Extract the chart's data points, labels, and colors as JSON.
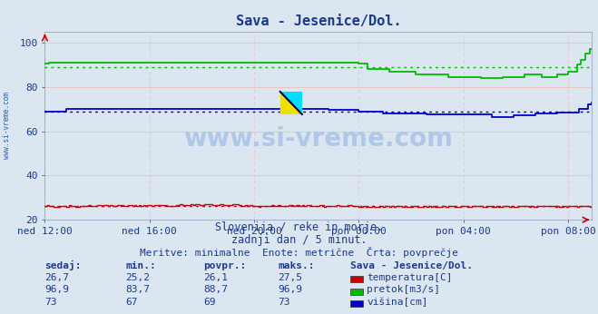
{
  "title": "Sava - Jesenice/Dol.",
  "subtitle1": "Slovenija / reke in morje.",
  "subtitle2": "zadnji dan / 5 minut.",
  "subtitle3": "Meritve: minimalne  Enote: metrične  Črta: povprečje",
  "xlabel_ticks": [
    "ned 12:00",
    "ned 16:00",
    "ned 20:00",
    "pon 00:00",
    "pon 04:00",
    "pon 08:00"
  ],
  "ylabel_ticks": [
    20,
    40,
    60,
    80,
    100
  ],
  "ylim": [
    20,
    105
  ],
  "xlim": [
    0,
    251
  ],
  "n_points": 252,
  "bg_color": "#dce6f0",
  "title_color": "#1a3a8a",
  "text_color": "#1a3a8a",
  "watermark": "www.si-vreme.com",
  "watermark_color": "#b0c8e8",
  "temp_color": "#cc0000",
  "flow_color": "#00bb00",
  "height_color": "#0000cc",
  "temp_avg": 26.1,
  "flow_avg": 88.7,
  "height_avg": 69,
  "temp_min": 25.2,
  "temp_max": 27.5,
  "temp_curr": "26,7",
  "flow_min": "83,7",
  "flow_max": "96,9",
  "flow_curr": "96,9",
  "height_min": "67",
  "height_max": "73",
  "height_curr": "73",
  "temp_min_s": "25,2",
  "temp_max_s": "27,5",
  "temp_curr_s": "26,7",
  "temp_avg_s": "26,1",
  "flow_min_s": "83,7",
  "flow_max_s": "96,9",
  "flow_curr_s": "96,9",
  "flow_avg_s": "88,7",
  "height_min_s": "67",
  "height_max_s": "73",
  "height_curr_s": "73",
  "height_avg_s": "69",
  "label_station": "Sava - Jesenice/Dol.",
  "label_temp": "temperatura[C]",
  "label_flow": "pretok[m3/s]",
  "label_height": "višina[cm]",
  "sidebar_text": "www.si-vreme.com",
  "sidebar_color": "#2060a0",
  "grid_h_color": "#e8c8c8",
  "grid_v_color": "#e8c8c8"
}
